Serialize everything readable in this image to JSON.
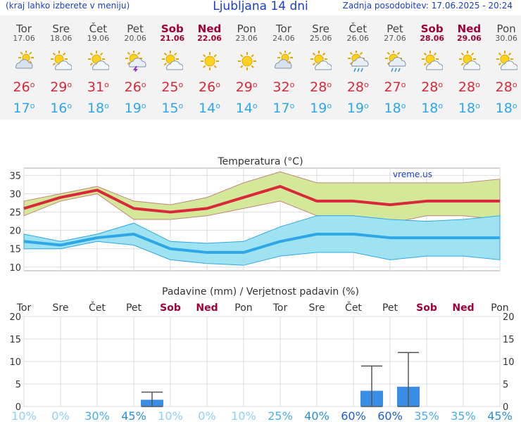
{
  "header": {
    "menu_hint": "(kraj lahko izberete v meniju)",
    "title": "Ljubljana 14 dni",
    "updated": "Zadnja posodobitev: 17.06.2025 - 20:24"
  },
  "days": [
    {
      "name": "Tor",
      "date": "17.06",
      "icon": "cloudy-icon",
      "hi": "26",
      "lo": "17",
      "weekend": false
    },
    {
      "name": "Sre",
      "date": "18.06",
      "icon": "partly-cloudy-icon",
      "hi": "29",
      "lo": "16",
      "weekend": false
    },
    {
      "name": "Čet",
      "date": "19.06",
      "icon": "partly-cloudy-icon",
      "hi": "31",
      "lo": "18",
      "weekend": false
    },
    {
      "name": "Pet",
      "date": "20.06",
      "icon": "thunderstorm-icon",
      "hi": "26",
      "lo": "19",
      "weekend": false
    },
    {
      "name": "Sob",
      "date": "21.06",
      "icon": "partly-cloudy-icon",
      "hi": "25",
      "lo": "15",
      "weekend": true
    },
    {
      "name": "Ned",
      "date": "22.06",
      "icon": "sunny-icon",
      "hi": "26",
      "lo": "14",
      "weekend": true
    },
    {
      "name": "Pon",
      "date": "23.06",
      "icon": "sunny-icon",
      "hi": "29",
      "lo": "14",
      "weekend": false
    },
    {
      "name": "Tor",
      "date": "24.06",
      "icon": "cloudy-icon",
      "hi": "32",
      "lo": "17",
      "weekend": false
    },
    {
      "name": "Sre",
      "date": "25.06",
      "icon": "partly-cloudy-icon",
      "hi": "28",
      "lo": "19",
      "weekend": false
    },
    {
      "name": "Čet",
      "date": "26.06",
      "icon": "showers-icon",
      "hi": "28",
      "lo": "19",
      "weekend": false
    },
    {
      "name": "Pet",
      "date": "27.06",
      "icon": "showers-icon",
      "hi": "27",
      "lo": "18",
      "weekend": false
    },
    {
      "name": "Sob",
      "date": "28.06",
      "icon": "partly-cloudy-icon",
      "hi": "28",
      "lo": "18",
      "weekend": true
    },
    {
      "name": "Ned",
      "date": "29.06",
      "icon": "partly-cloudy-icon",
      "hi": "28",
      "lo": "18",
      "weekend": true
    },
    {
      "name": "Pon",
      "date": "30.06",
      "icon": "partly-cloudy-icon",
      "hi": "28",
      "lo": "18",
      "weekend": false
    }
  ],
  "colors": {
    "hi": "#d9283a",
    "lo": "#2fa7e6",
    "weekend": "#a0003a",
    "hi_band": "#d4e89a",
    "lo_band": "#9fe3f3",
    "bar": "#3a8ee6"
  },
  "chart_data": [
    {
      "type": "line",
      "title": "Temperatura (°C)",
      "watermark": "vreme.us",
      "x": [
        "17.06",
        "18.06",
        "19.06",
        "20.06",
        "21.06",
        "22.06",
        "23.06",
        "24.06",
        "25.06",
        "26.06",
        "27.06",
        "28.06",
        "29.06",
        "30.06"
      ],
      "ylim": [
        9,
        37
      ],
      "yticks": [
        10,
        15,
        20,
        25,
        30,
        35
      ],
      "grid": true,
      "series": [
        {
          "role": "hi",
          "values": [
            26,
            29,
            31,
            26,
            25,
            26,
            29,
            32,
            28,
            28,
            27,
            28,
            28,
            28
          ]
        },
        {
          "role": "hi_upper",
          "values": [
            28,
            30,
            32,
            28,
            27,
            29,
            33,
            36,
            33,
            33,
            33,
            33,
            33,
            34
          ]
        },
        {
          "role": "hi_lower",
          "values": [
            24,
            28,
            30,
            23,
            23,
            24,
            26,
            28,
            24,
            24,
            22,
            24,
            24,
            23
          ]
        },
        {
          "role": "lo",
          "values": [
            17,
            16,
            18,
            19,
            15,
            14,
            14,
            17,
            19,
            19,
            18,
            18,
            18,
            18
          ]
        },
        {
          "role": "lo_upper",
          "values": [
            19,
            17,
            19,
            22,
            17,
            16.5,
            17,
            21,
            24,
            24,
            23,
            22.5,
            23,
            24
          ]
        },
        {
          "role": "lo_lower",
          "values": [
            15,
            15,
            17,
            16,
            12,
            11,
            10.5,
            13,
            14,
            14,
            12,
            13,
            13,
            12
          ]
        }
      ]
    },
    {
      "type": "bar",
      "title": "Padavine (mm) / Verjetnost padavin (%)",
      "categories": [
        "Tor",
        "Sre",
        "Čet",
        "Pet",
        "Sob",
        "Ned",
        "Pon",
        "Tor",
        "Sre",
        "Čet",
        "Pet",
        "Sob",
        "Ned",
        "Pon"
      ],
      "weekend": [
        false,
        false,
        false,
        false,
        true,
        true,
        false,
        false,
        false,
        false,
        false,
        true,
        true,
        false
      ],
      "ylim": [
        0,
        20
      ],
      "yticks": [
        0,
        5,
        10,
        15,
        20
      ],
      "grid": true,
      "values": [
        0,
        0,
        0,
        1.5,
        0,
        0,
        0,
        0,
        0,
        3.5,
        4.4,
        0,
        0,
        0
      ],
      "error_upper": [
        0,
        0,
        0,
        3.2,
        0,
        0,
        0,
        0,
        0,
        9,
        12,
        0,
        0,
        0
      ],
      "probability": [
        "10%",
        "0%",
        "30%",
        "45%",
        "10%",
        "0%",
        "10%",
        "25%",
        "40%",
        "60%",
        "60%",
        "35%",
        "35%",
        "45%"
      ]
    }
  ]
}
